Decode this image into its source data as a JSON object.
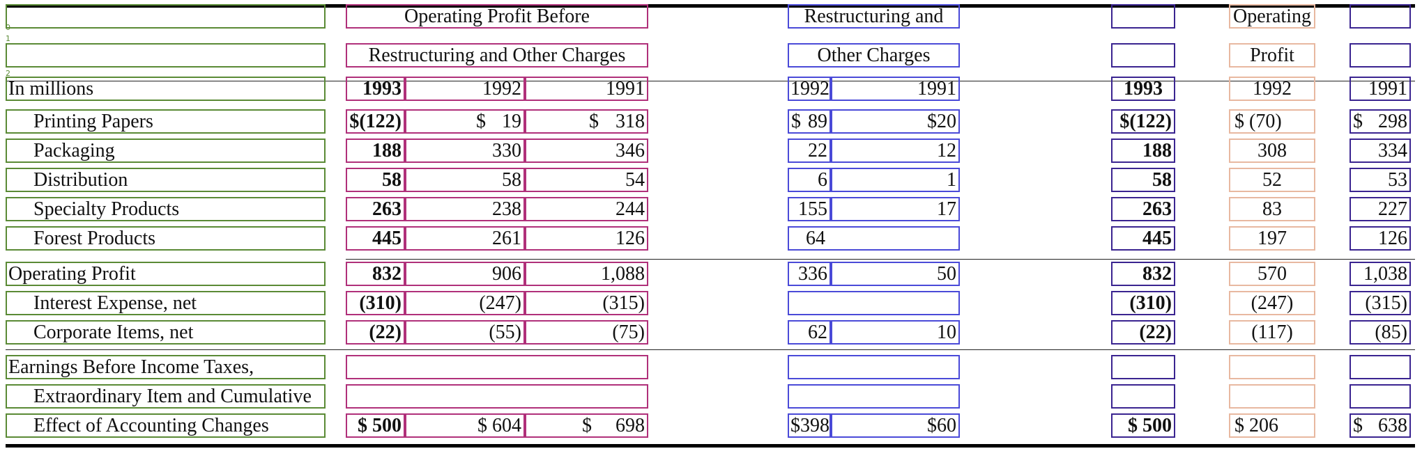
{
  "header": {
    "opbr_line1": "Operating Profit Before",
    "opbr_line2": "Restructuring and Other Charges",
    "roc_line1": "Restructuring and",
    "roc_line2": "Other Charges",
    "op_line1": "Operating",
    "op_line2": "Profit"
  },
  "years": {
    "units_label": "In millions",
    "opbr": [
      "1993",
      "1992",
      "1991"
    ],
    "roc": [
      "1992",
      "1991"
    ],
    "op": [
      "1993",
      "1992",
      "1991"
    ]
  },
  "rows": [
    {
      "label": "Printing Papers",
      "opbr": [
        "$(122)",
        "19",
        "318"
      ],
      "roc": [
        "89",
        "$20"
      ],
      "op": [
        "$(122)",
        "$ (70)",
        "298"
      ]
    },
    {
      "label": "Packaging",
      "opbr": [
        "188",
        "330",
        "346"
      ],
      "roc": [
        "22",
        "12"
      ],
      "op": [
        "188",
        "308",
        "334"
      ]
    },
    {
      "label": "Distribution",
      "opbr": [
        "58",
        "58",
        "54"
      ],
      "roc": [
        "6",
        "1"
      ],
      "op": [
        "58",
        "52",
        "53"
      ]
    },
    {
      "label": "Specialty Products",
      "opbr": [
        "263",
        "238",
        "244"
      ],
      "roc": [
        "155",
        "17"
      ],
      "op": [
        "263",
        "83",
        "227"
      ]
    },
    {
      "label": "Forest Products",
      "opbr": [
        "445",
        "261",
        "126"
      ],
      "roc": [
        "64",
        ""
      ],
      "op": [
        "445",
        "197",
        "126"
      ]
    },
    {
      "label": "Operating Profit",
      "opbr": [
        "832",
        "906",
        "1,088"
      ],
      "roc": [
        "336",
        "50"
      ],
      "op": [
        "832",
        "570",
        "1,038"
      ]
    },
    {
      "label": "Interest Expense, net",
      "opbr": [
        "(310)",
        "(247)",
        "(315)"
      ],
      "roc": [
        "",
        ""
      ],
      "op": [
        "(310)",
        "(247)",
        "(315)"
      ]
    },
    {
      "label": "Corporate Items, net",
      "opbr": [
        "(22)",
        "(55)",
        "(75)"
      ],
      "roc": [
        "62",
        "10"
      ],
      "op": [
        "(22)",
        "(117)",
        "(85)"
      ]
    }
  ],
  "earnings_label": [
    "Earnings Before Income Taxes,",
    "Extraordinary Item and Cumulative",
    "Effect of Accounting Changes"
  ],
  "earnings_values": {
    "opbr": [
      "$ 500",
      "$ 604",
      "698"
    ],
    "roc": [
      "$398",
      "$60"
    ],
    "op": [
      "$ 500",
      "$ 206",
      "638"
    ]
  },
  "currency_symbol": "$",
  "box_colors": {
    "label_column": "#5a8a35",
    "opbr_columns": "#b0307a",
    "roc_columns": "#4a4ad8",
    "op_1993_1991": "#3a2490",
    "op_1992": "#e8b8a0"
  }
}
